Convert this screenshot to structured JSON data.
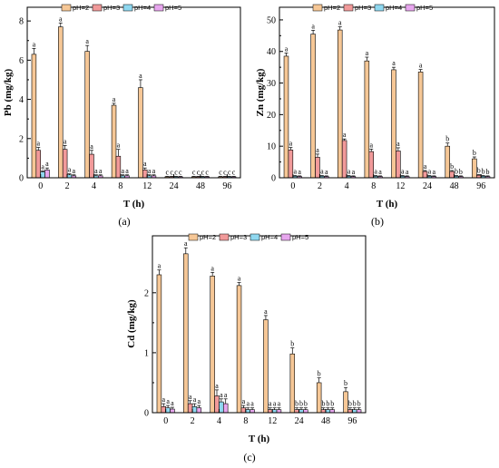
{
  "colors": {
    "pH2": "#f6c796",
    "pH3": "#f19a9a",
    "pH4": "#8fd8f0",
    "pH5": "#e7a6ee"
  },
  "chart_data": [
    {
      "type": "bar",
      "panel_label": "(a)",
      "xlabel": "T (h)",
      "ylabel": "Pb (mg/kg)",
      "ylim": [
        0,
        8.7
      ],
      "yticks": [
        0,
        2,
        4,
        6,
        8
      ],
      "categories": [
        "0",
        "2",
        "4",
        "8",
        "12",
        "24",
        "48",
        "96"
      ],
      "legend_position": "top",
      "series": [
        {
          "name": "pH=2",
          "values": [
            6.3,
            7.7,
            6.45,
            3.7,
            4.6,
            0.05,
            0.05,
            0.05
          ],
          "errors": [
            0.3,
            0.2,
            0.3,
            0.1,
            0.4,
            0.02,
            0.02,
            0.02
          ],
          "labels": [
            "a",
            "a",
            "a",
            "a",
            "a",
            "c",
            "c",
            "c"
          ]
        },
        {
          "name": "pH=3",
          "values": [
            1.4,
            1.45,
            1.2,
            1.1,
            0.4,
            0.05,
            0.05,
            0.05
          ],
          "errors": [
            0.15,
            0.2,
            0.2,
            0.35,
            0.1,
            0.02,
            0.02,
            0.02
          ],
          "labels": [
            "a",
            "a",
            "a",
            "a",
            "a",
            "c",
            "c",
            "c"
          ]
        },
        {
          "name": "pH=4",
          "values": [
            0.3,
            0.15,
            0.1,
            0.1,
            0.1,
            0.05,
            0.05,
            0.05
          ],
          "errors": [
            0.05,
            0.05,
            0.05,
            0.05,
            0.05,
            0.02,
            0.02,
            0.02
          ],
          "labels": [
            "a",
            "a",
            "a",
            "a",
            "a",
            "c",
            "c",
            "c"
          ]
        },
        {
          "name": "pH=5",
          "values": [
            0.4,
            0.1,
            0.1,
            0.1,
            0.1,
            0.05,
            0.05,
            0.05
          ],
          "errors": [
            0.1,
            0.05,
            0.05,
            0.05,
            0.05,
            0.02,
            0.02,
            0.02
          ],
          "labels": [
            "a",
            "a",
            "a",
            "a",
            "a",
            "c",
            "c",
            "c"
          ]
        }
      ]
    },
    {
      "type": "bar",
      "panel_label": "(b)",
      "xlabel": "T (h)",
      "ylabel": "Zn (mg/kg)",
      "ylim": [
        0,
        54
      ],
      "yticks": [
        0,
        10,
        20,
        30,
        40,
        50
      ],
      "categories": [
        "0",
        "2",
        "4",
        "8",
        "12",
        "24",
        "48",
        "96"
      ],
      "legend_position": "top",
      "series": [
        {
          "name": "pH=2",
          "values": [
            38.5,
            45.5,
            46.8,
            37.0,
            34.2,
            33.5,
            10.0,
            6.0
          ],
          "errors": [
            1.0,
            1.2,
            1.0,
            1.2,
            0.8,
            0.8,
            1.0,
            0.6
          ],
          "labels": [
            "a",
            "a",
            "a",
            "a",
            "a",
            "a",
            "b",
            "b"
          ]
        },
        {
          "name": "pH=3",
          "values": [
            8.8,
            6.5,
            11.8,
            8.3,
            8.5,
            2.0,
            2.0,
            0.8
          ],
          "errors": [
            0.8,
            1.0,
            0.5,
            0.8,
            1.0,
            0.3,
            0.3,
            0.2
          ],
          "labels": [
            "a",
            "a",
            "a",
            "a",
            "a",
            "a",
            "b",
            "b"
          ]
        },
        {
          "name": "pH=4",
          "values": [
            0.5,
            0.5,
            0.5,
            0.5,
            0.5,
            0.5,
            0.5,
            0.5
          ],
          "errors": [
            0.2,
            0.2,
            0.2,
            0.2,
            0.2,
            0.2,
            0.2,
            0.2
          ],
          "labels": [
            "a",
            "a",
            "a",
            "a",
            "a",
            "a",
            "b",
            "b"
          ]
        },
        {
          "name": "pH=5",
          "values": [
            0.4,
            0.4,
            0.4,
            0.4,
            0.4,
            0.4,
            0.4,
            0.4
          ],
          "errors": [
            0.2,
            0.2,
            0.2,
            0.2,
            0.2,
            0.2,
            0.2,
            0.2
          ],
          "labels": [
            "a",
            "a",
            "a",
            "a",
            "a",
            "a",
            "b",
            "b"
          ]
        }
      ]
    },
    {
      "type": "bar",
      "panel_label": "(c)",
      "xlabel": "T (h)",
      "ylabel": "Cd (mg/kg)",
      "ylim": [
        0,
        2.95
      ],
      "yticks": [
        0,
        1,
        2
      ],
      "categories": [
        "0",
        "2",
        "4",
        "8",
        "12",
        "24",
        "48",
        "96"
      ],
      "legend_position": "top",
      "series": [
        {
          "name": "pH=2",
          "values": [
            2.3,
            2.65,
            2.28,
            2.12,
            1.55,
            0.98,
            0.5,
            0.35
          ],
          "errors": [
            0.08,
            0.1,
            0.06,
            0.05,
            0.07,
            0.1,
            0.08,
            0.07
          ],
          "labels": [
            "a",
            "a",
            "a",
            "a",
            "a",
            "b",
            "b",
            "b"
          ]
        },
        {
          "name": "pH=3",
          "values": [
            0.1,
            0.15,
            0.28,
            0.08,
            0.05,
            0.05,
            0.05,
            0.05
          ],
          "errors": [
            0.05,
            0.05,
            0.1,
            0.04,
            0.03,
            0.03,
            0.03,
            0.03
          ],
          "labels": [
            "a",
            "a",
            "a",
            "a",
            "a",
            "b",
            "b",
            "b"
          ]
        },
        {
          "name": "pH=4",
          "values": [
            0.08,
            0.1,
            0.18,
            0.05,
            0.05,
            0.05,
            0.05,
            0.05
          ],
          "errors": [
            0.04,
            0.05,
            0.05,
            0.03,
            0.03,
            0.03,
            0.03,
            0.03
          ],
          "labels": [
            "a",
            "a",
            "a",
            "a",
            "a",
            "b",
            "b",
            "b"
          ]
        },
        {
          "name": "pH=5",
          "values": [
            0.06,
            0.08,
            0.15,
            0.05,
            0.05,
            0.05,
            0.05,
            0.05
          ],
          "errors": [
            0.03,
            0.04,
            0.08,
            0.03,
            0.03,
            0.03,
            0.03,
            0.03
          ],
          "labels": [
            "a",
            "a",
            "a",
            "a",
            "a",
            "b",
            "b",
            "b"
          ]
        }
      ]
    }
  ]
}
